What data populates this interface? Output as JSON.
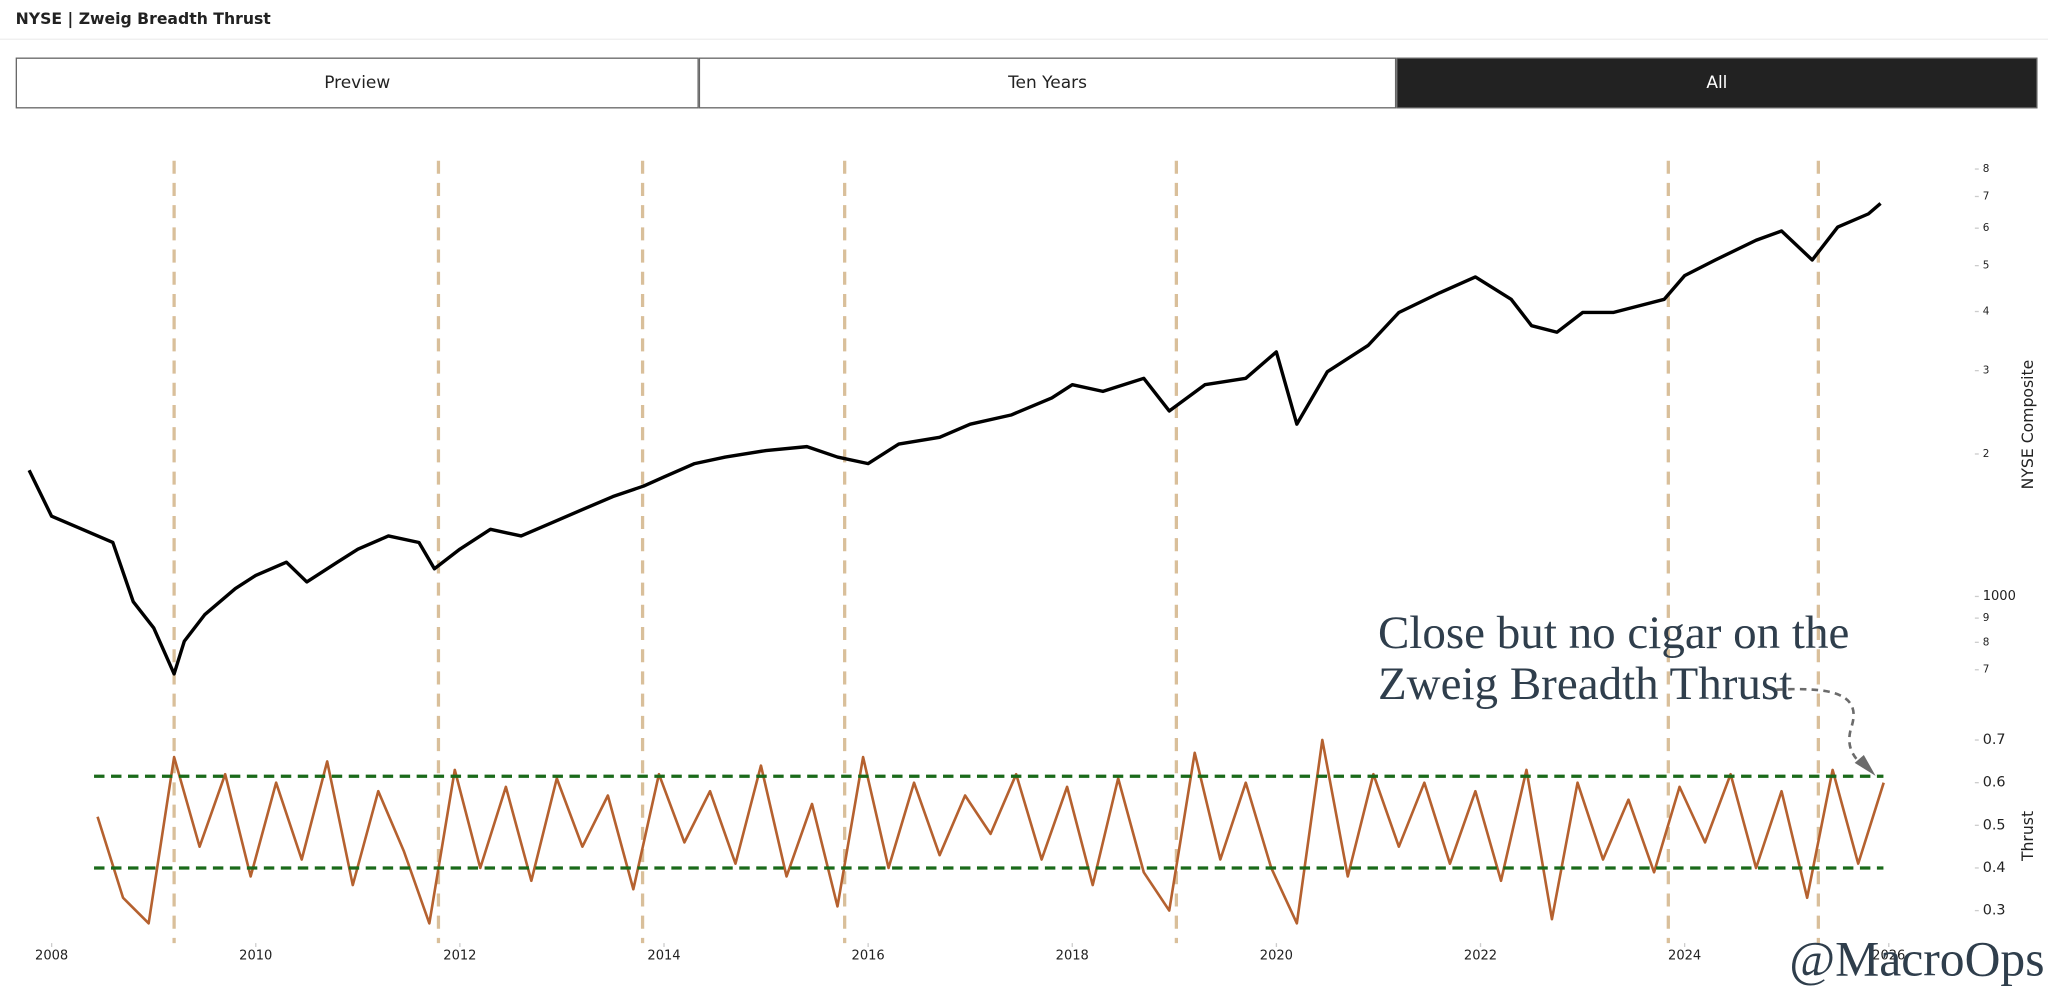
{
  "header": {
    "title": "NYSE | Zweig Breadth Thrust"
  },
  "tabs": {
    "items": [
      "Preview",
      "Ten Years",
      "All"
    ],
    "active": 2
  },
  "watermark": "@MacroOps",
  "chart_data": [
    {
      "type": "line",
      "y_label": "NYSE Composite",
      "log_scale": true,
      "color": "#000000",
      "xlim": [
        2007.75,
        2026.05
      ],
      "ylim": [
        660,
        8600
      ],
      "yticks": [
        {
          "value": 700,
          "label": "7"
        },
        {
          "value": 800,
          "label": "8"
        },
        {
          "value": 900,
          "label": "9"
        },
        1000,
        {
          "value": 2000,
          "label": "2"
        },
        {
          "value": 3000,
          "label": "3"
        },
        {
          "value": 4000,
          "label": "4"
        },
        {
          "value": 5000,
          "label": "5"
        },
        {
          "value": 6000,
          "label": "6"
        },
        {
          "value": 7000,
          "label": "7"
        },
        {
          "value": 8000,
          "label": "8"
        }
      ],
      "signals": [
        2009.2,
        2011.79,
        2013.79,
        2015.77,
        2019.02,
        2023.84,
        2025.31
      ],
      "signal_color": "#d9bf9a",
      "x": [
        2007.78,
        2008.0,
        2008.3,
        2008.6,
        2008.8,
        2009.0,
        2009.2,
        2009.3,
        2009.5,
        2009.8,
        2010.0,
        2010.3,
        2010.5,
        2010.8,
        2011.0,
        2011.3,
        2011.6,
        2011.75,
        2012.0,
        2012.3,
        2012.6,
        2012.9,
        2013.2,
        2013.5,
        2013.8,
        2014.0,
        2014.3,
        2014.6,
        2015.0,
        2015.4,
        2015.7,
        2016.0,
        2016.3,
        2016.7,
        2017.0,
        2017.4,
        2017.8,
        2018.0,
        2018.3,
        2018.7,
        2018.95,
        2019.3,
        2019.7,
        2020.0,
        2020.2,
        2020.5,
        2020.9,
        2021.2,
        2021.6,
        2021.95,
        2022.3,
        2022.5,
        2022.75,
        2023.0,
        2023.3,
        2023.8,
        2024.0,
        2024.3,
        2024.7,
        2024.95,
        2025.25,
        2025.5,
        2025.8,
        2025.92
      ],
      "values": [
        1848,
        1477,
        1386,
        1300,
        975,
        858,
        686,
        804,
        915,
        1039,
        1108,
        1181,
        1073,
        1181,
        1259,
        1342,
        1300,
        1144,
        1259,
        1386,
        1342,
        1431,
        1526,
        1626,
        1711,
        1789,
        1908,
        1970,
        2034,
        2073,
        1970,
        1908,
        2100,
        2168,
        2312,
        2417,
        2627,
        2801,
        2712,
        2891,
        2465,
        2801,
        2891,
        3287,
        2312,
        2985,
        3394,
        3981,
        4383,
        4732,
        4244,
        3734,
        3617,
        3981,
        3981,
        4244,
        4762,
        5141,
        5658,
        5918,
        5141,
        6034,
        6432,
        6770
      ]
    },
    {
      "type": "line",
      "y_label": "Thrust",
      "color": "#b5612f",
      "xlim": [
        2007.75,
        2026.05
      ],
      "ylim": [
        0.23,
        0.72
      ],
      "xticks": [
        2008,
        2010,
        2012,
        2014,
        2016,
        2018,
        2020,
        2022,
        2024,
        2026
      ],
      "yticks": [
        0.3,
        0.4,
        0.5,
        0.6,
        0.7
      ],
      "thresholds": [
        0.4,
        0.615
      ],
      "threshold_color": "#1a6a1a",
      "annotation": [
        "Close but no cigar on the",
        "Zweig Breadth Thrust"
      ],
      "x": [
        2008.45,
        2008.7,
        2008.95,
        2009.2,
        2009.45,
        2009.7,
        2009.95,
        2010.2,
        2010.45,
        2010.7,
        2010.95,
        2011.2,
        2011.45,
        2011.7,
        2011.95,
        2012.2,
        2012.45,
        2012.7,
        2012.95,
        2013.2,
        2013.45,
        2013.7,
        2013.95,
        2014.2,
        2014.45,
        2014.7,
        2014.95,
        2015.2,
        2015.45,
        2015.7,
        2015.95,
        2016.2,
        2016.45,
        2016.7,
        2016.95,
        2017.2,
        2017.45,
        2017.7,
        2017.95,
        2018.2,
        2018.45,
        2018.7,
        2018.95,
        2019.2,
        2019.45,
        2019.7,
        2019.95,
        2020.2,
        2020.45,
        2020.7,
        2020.95,
        2021.2,
        2021.45,
        2021.7,
        2021.95,
        2022.2,
        2022.45,
        2022.7,
        2022.95,
        2023.2,
        2023.45,
        2023.7,
        2023.95,
        2024.2,
        2024.45,
        2024.7,
        2024.95,
        2025.2,
        2025.45,
        2025.7,
        2025.95
      ],
      "values": [
        0.52,
        0.33,
        0.27,
        0.66,
        0.45,
        0.62,
        0.38,
        0.6,
        0.42,
        0.65,
        0.36,
        0.58,
        0.44,
        0.27,
        0.63,
        0.4,
        0.59,
        0.37,
        0.61,
        0.45,
        0.57,
        0.35,
        0.62,
        0.46,
        0.58,
        0.41,
        0.64,
        0.38,
        0.55,
        0.31,
        0.66,
        0.4,
        0.6,
        0.43,
        0.57,
        0.48,
        0.62,
        0.42,
        0.59,
        0.36,
        0.61,
        0.39,
        0.3,
        0.67,
        0.42,
        0.6,
        0.4,
        0.27,
        0.7,
        0.38,
        0.62,
        0.45,
        0.6,
        0.41,
        0.58,
        0.37,
        0.63,
        0.28,
        0.6,
        0.42,
        0.56,
        0.39,
        0.59,
        0.46,
        0.62,
        0.4,
        0.58,
        0.33,
        0.63,
        0.41,
        0.6
      ]
    }
  ]
}
